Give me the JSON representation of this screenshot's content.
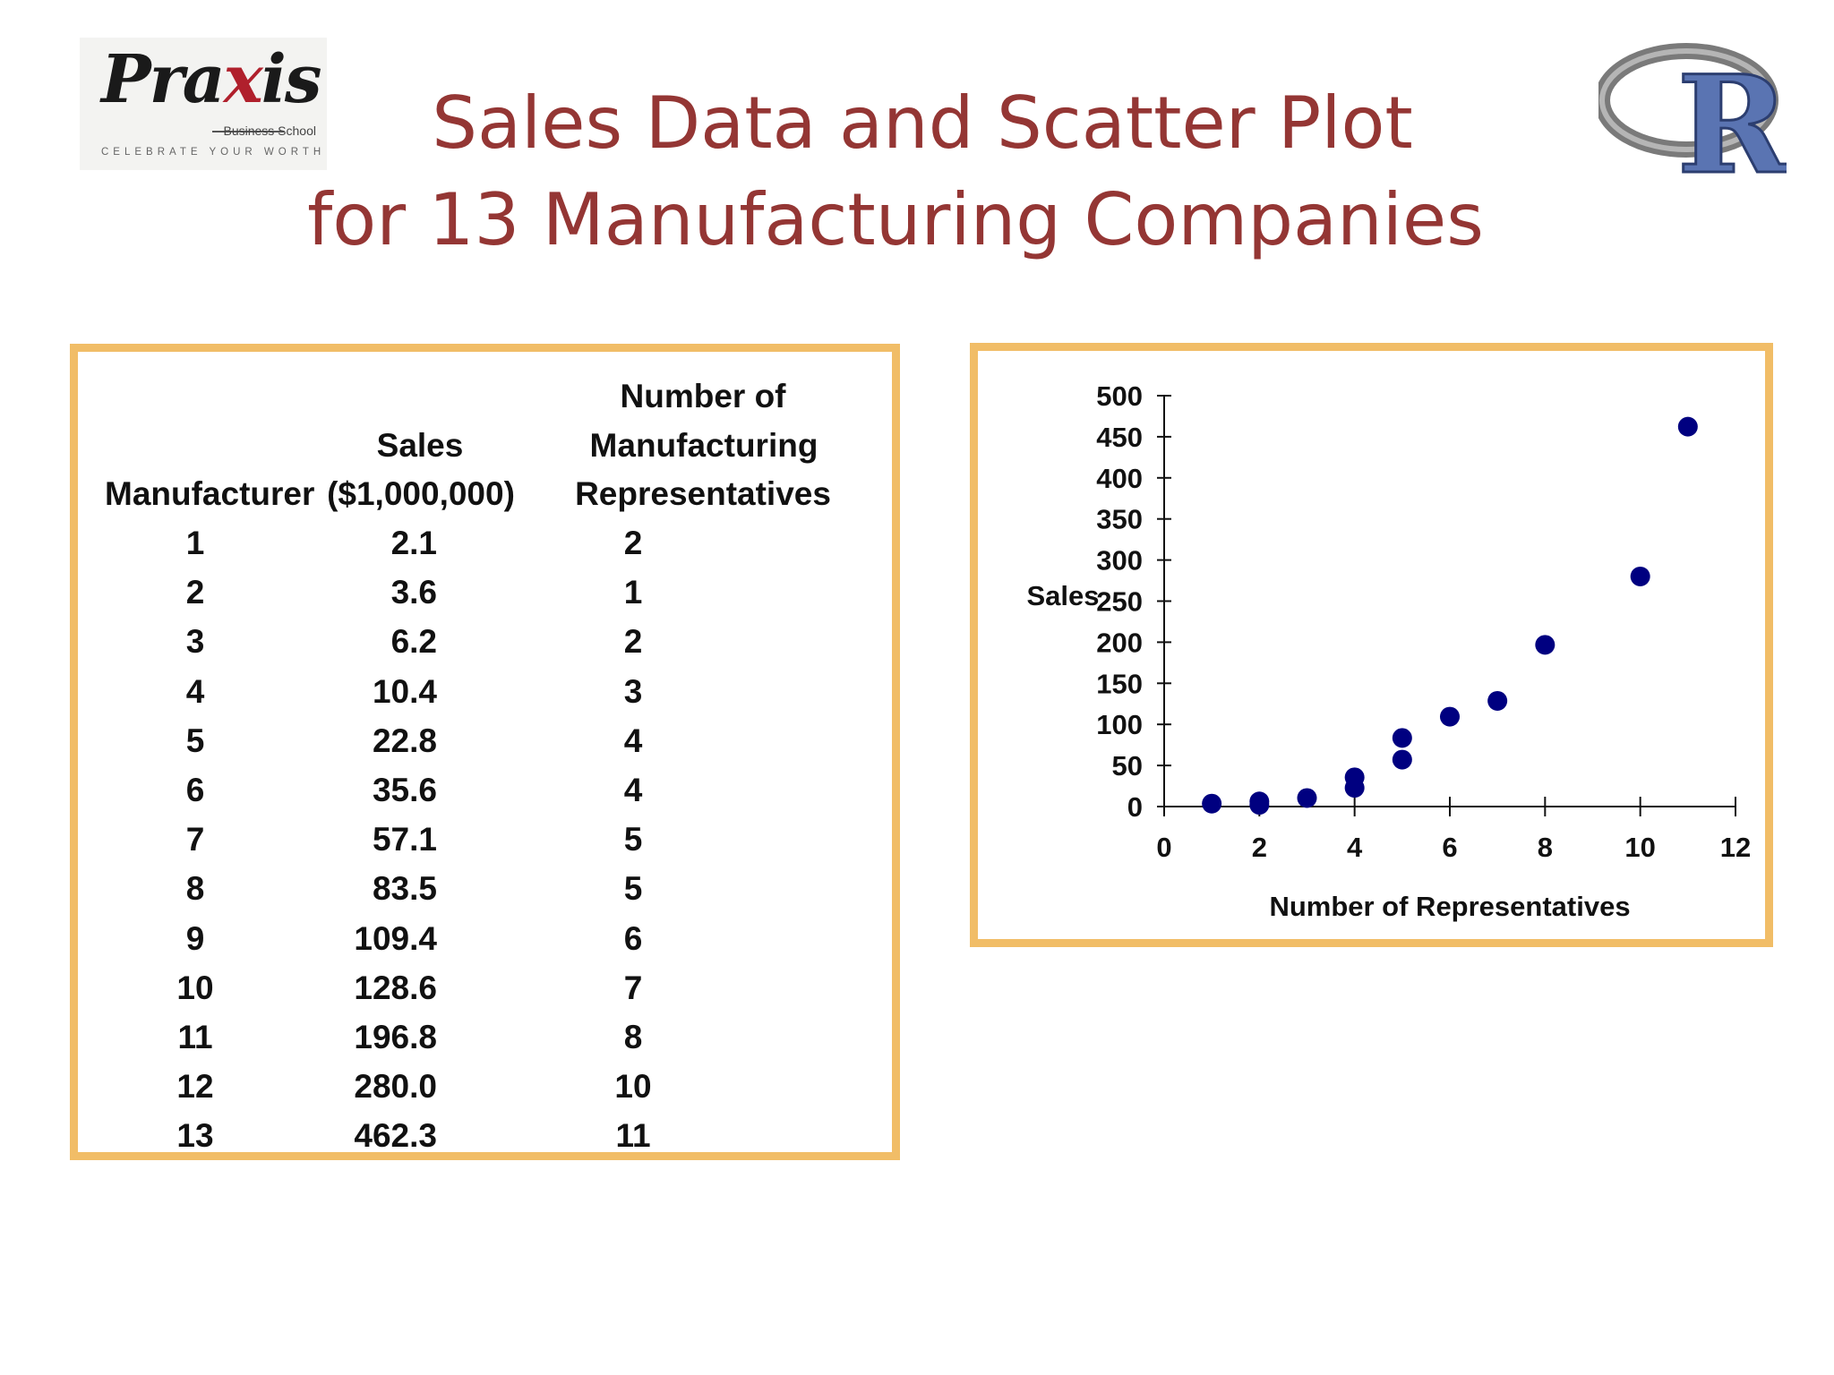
{
  "logos": {
    "left": {
      "word": "Praxis",
      "school": "Business School",
      "tagline": "CELEBRATE YOUR WORTH"
    },
    "right": {
      "letter": "R"
    }
  },
  "title": {
    "line1": "Sales Data and Scatter Plot",
    "line2": "for 13 Manufacturing Companies"
  },
  "table": {
    "headers": {
      "manufacturer": "Manufacturer",
      "sales_line1": "Sales",
      "sales_line2": "($1,000,000)",
      "reps_line1": "Number of",
      "reps_line2": "Manufacturing",
      "reps_line3": "Representatives"
    },
    "rows": [
      {
        "manufacturer": "1",
        "sales": "2.1",
        "reps": "2"
      },
      {
        "manufacturer": "2",
        "sales": "3.6",
        "reps": "1"
      },
      {
        "manufacturer": "3",
        "sales": "6.2",
        "reps": "2"
      },
      {
        "manufacturer": "4",
        "sales": "10.4",
        "reps": "3"
      },
      {
        "manufacturer": "5",
        "sales": "22.8",
        "reps": "4"
      },
      {
        "manufacturer": "6",
        "sales": "35.6",
        "reps": "4"
      },
      {
        "manufacturer": "7",
        "sales": "57.1",
        "reps": "5"
      },
      {
        "manufacturer": "8",
        "sales": "83.5",
        "reps": "5"
      },
      {
        "manufacturer": "9",
        "sales": "109.4",
        "reps": "6"
      },
      {
        "manufacturer": "10",
        "sales": "128.6",
        "reps": "7"
      },
      {
        "manufacturer": "11",
        "sales": "196.8",
        "reps": "8"
      },
      {
        "manufacturer": "12",
        "sales": "280.0",
        "reps": "10"
      },
      {
        "manufacturer": "13",
        "sales": "462.3",
        "reps": "11"
      }
    ]
  },
  "colors": {
    "title": "#943634",
    "frame": "#f1bd67",
    "marker": "#000080"
  },
  "chart_data": {
    "type": "scatter",
    "x": [
      2,
      1,
      2,
      3,
      4,
      4,
      5,
      5,
      6,
      7,
      8,
      10,
      11
    ],
    "y": [
      2.1,
      3.6,
      6.2,
      10.4,
      22.8,
      35.6,
      57.1,
      83.5,
      109.4,
      128.6,
      196.8,
      280.0,
      462.3
    ],
    "xlabel": "Number of Representatives",
    "ylabel": "Sales",
    "xlim": [
      0,
      12
    ],
    "ylim": [
      0,
      500
    ],
    "xticks": [
      "0",
      "2",
      "4",
      "6",
      "8",
      "10",
      "12"
    ],
    "yticks": [
      "0",
      "50",
      "100",
      "150",
      "200",
      "250",
      "300",
      "350",
      "400",
      "450",
      "500"
    ],
    "grid": false,
    "legend": "none"
  }
}
